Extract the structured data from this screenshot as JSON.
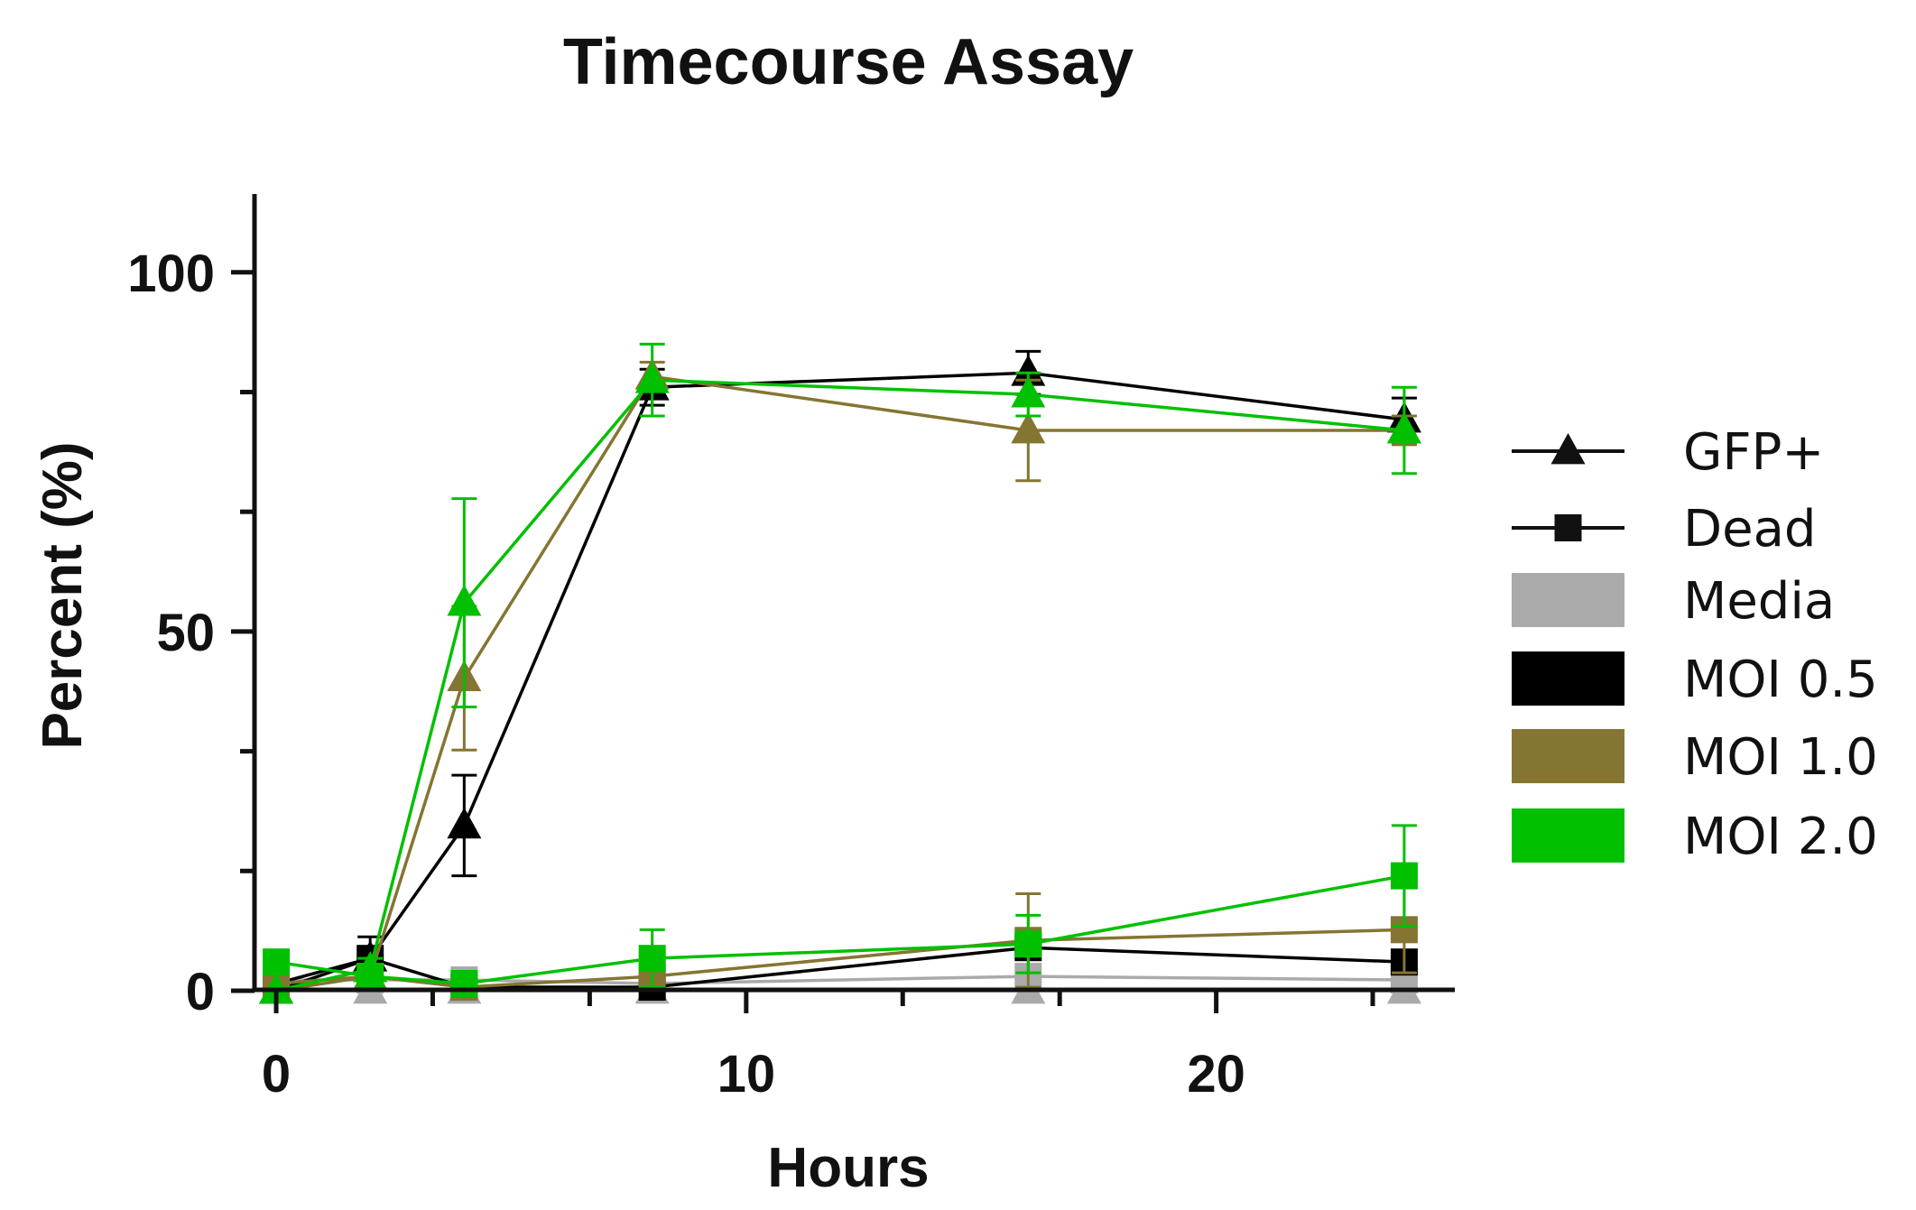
{
  "chart_data": {
    "type": "line",
    "title": "Timecourse Assay",
    "xlabel": "Hours",
    "ylabel": "Percent (%)",
    "xlim": [
      -0.5,
      25
    ],
    "ylim": [
      0,
      105
    ],
    "x_major_ticks": [
      0,
      10,
      20
    ],
    "x_minor_ticks": [
      3.33,
      6.67,
      13.33,
      16.67,
      23.33
    ],
    "y_major_ticks": [
      0,
      50,
      100
    ],
    "y_minor_ticks": [
      16.67,
      33.33,
      66.67,
      83.33
    ],
    "x_tick_labels": [
      "0",
      "10",
      "20"
    ],
    "y_tick_labels": [
      "0",
      "50",
      "100"
    ],
    "grid": false,
    "legend_position": "right",
    "legend": {
      "markers": [
        {
          "label": "GFP+",
          "marker": "triangle"
        },
        {
          "label": "Dead",
          "marker": "square"
        }
      ],
      "colors": [
        {
          "label": "Media",
          "color": "#aaaaaa"
        },
        {
          "label": "MOI 0.5",
          "color": "#000000"
        },
        {
          "label": "MOI 1.0",
          "color": "#857532"
        },
        {
          "label": "MOI 2.0",
          "color": "#00c000"
        }
      ]
    },
    "x": [
      0,
      2,
      4,
      8,
      16,
      24
    ],
    "series": [
      {
        "group": "Media",
        "measure": "GFP+",
        "color": "#aaaaaa",
        "marker": "triangle",
        "values": [
          0,
          0,
          0,
          0,
          0,
          0
        ],
        "errors": [
          0,
          0,
          0,
          0,
          0,
          0
        ]
      },
      {
        "group": "Media",
        "measure": "Dead",
        "color": "#aaaaaa",
        "marker": "square",
        "values": [
          1.5,
          1.5,
          1.5,
          1.0,
          2.0,
          1.5
        ],
        "errors": [
          0.5,
          0.5,
          0.5,
          0.5,
          0.5,
          0.5
        ]
      },
      {
        "group": "MOI 0.5",
        "measure": "GFP+",
        "color": "#000000",
        "marker": "triangle",
        "values": [
          0,
          4.5,
          23,
          84,
          86,
          79.5
        ],
        "errors": [
          0,
          3,
          7,
          2.5,
          3,
          3
        ]
      },
      {
        "group": "MOI 0.5",
        "measure": "Dead",
        "color": "#000000",
        "marker": "square",
        "values": [
          1,
          4.5,
          0.5,
          0.5,
          6,
          4
        ],
        "errors": [
          0.5,
          1,
          0.5,
          0.5,
          1.5,
          1
        ]
      },
      {
        "group": "MOI 1.0",
        "measure": "GFP+",
        "color": "#857532",
        "marker": "triangle",
        "values": [
          0,
          2,
          43.5,
          85.5,
          78,
          78
        ],
        "errors": [
          0,
          1,
          10,
          2,
          7,
          2
        ]
      },
      {
        "group": "MOI 1.0",
        "measure": "Dead",
        "color": "#857532",
        "marker": "square",
        "values": [
          1,
          2,
          0.5,
          2,
          7,
          8.5
        ],
        "errors": [
          0.5,
          1,
          0.5,
          1,
          6.5,
          6
        ]
      },
      {
        "group": "MOI 2.0",
        "measure": "GFP+",
        "color": "#00c000",
        "marker": "triangle",
        "values": [
          0,
          3,
          54,
          85,
          83,
          78
        ],
        "errors": [
          0,
          1.5,
          14.5,
          5,
          3,
          6
        ]
      },
      {
        "group": "MOI 2.0",
        "measure": "Dead",
        "color": "#00c000",
        "marker": "square",
        "values": [
          4,
          2,
          1,
          4.5,
          6.5,
          16
        ],
        "errors": [
          0.5,
          1,
          0.5,
          4,
          4,
          7
        ]
      }
    ]
  }
}
